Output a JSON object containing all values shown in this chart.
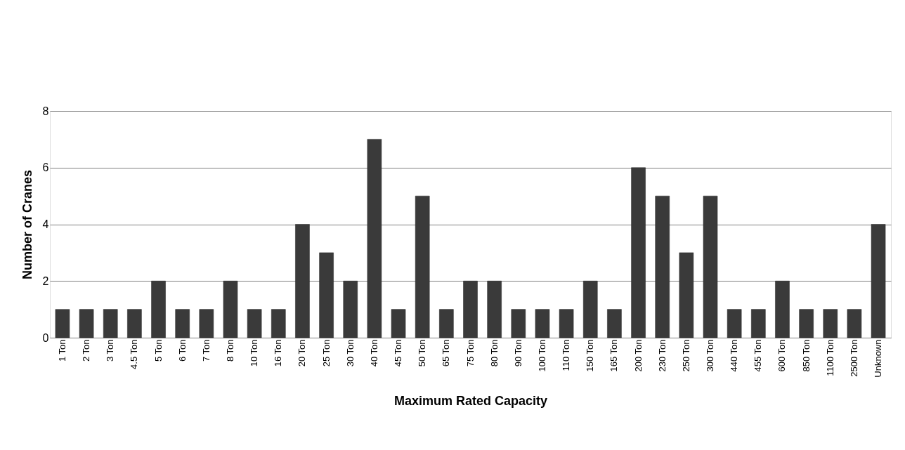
{
  "chart_data": {
    "type": "bar",
    "xlabel": "Maximum Rated Capacity",
    "ylabel": "Number of Cranes",
    "categories": [
      "1 Ton",
      "2 Ton",
      "3 Ton",
      "4.5 Ton",
      "5 Ton",
      "6 Ton",
      "7 Ton",
      "8 Ton",
      "10 Ton",
      "16 Ton",
      "20 Ton",
      "25 Ton",
      "30 Ton",
      "40 Ton",
      "45 Ton",
      "50 Ton",
      "65 Ton",
      "75 Ton",
      "80 Ton",
      "90 Ton",
      "100 Ton",
      "110 Ton",
      "150 Ton",
      "165 Ton",
      "200 Ton",
      "230 Ton",
      "250 Ton",
      "300 Ton",
      "440 Ton",
      "455 Ton",
      "600 Ton",
      "850 Ton",
      "1100 Ton",
      "2500 Ton",
      "Unknown"
    ],
    "values": [
      1,
      1,
      1,
      1,
      2,
      1,
      1,
      2,
      1,
      1,
      4,
      3,
      2,
      7,
      1,
      5,
      1,
      2,
      2,
      1,
      1,
      1,
      2,
      1,
      6,
      5,
      3,
      5,
      1,
      1,
      2,
      1,
      1,
      1,
      4
    ],
    "color": "#3a3a3a",
    "ylim": [
      0,
      8
    ],
    "yticks": [
      0,
      2,
      4,
      6,
      8
    ],
    "grid": "y"
  }
}
